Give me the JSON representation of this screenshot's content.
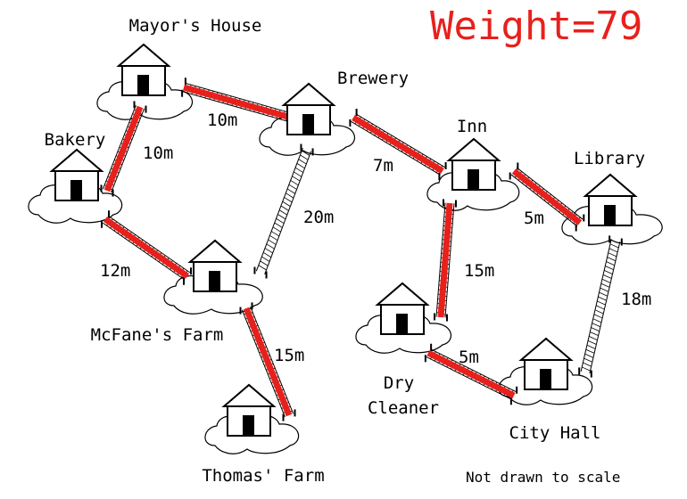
{
  "weight_label": "Weight=79",
  "note": "Not drawn to scale",
  "colors": {
    "mst_edge": "#e8201c",
    "ink": "#000000",
    "background": "#ffffff"
  },
  "towns": [
    {
      "id": "mayors-house",
      "name": "Mayor's House"
    },
    {
      "id": "brewery",
      "name": "Brewery"
    },
    {
      "id": "bakery",
      "name": "Bakery"
    },
    {
      "id": "inn",
      "name": "Inn"
    },
    {
      "id": "library",
      "name": "Library"
    },
    {
      "id": "mcfanes-farm",
      "name": "McFane's Farm"
    },
    {
      "id": "dry-cleaner",
      "name": "Dry Cleaner",
      "lines": [
        "Dry",
        "Cleaner"
      ]
    },
    {
      "id": "city-hall",
      "name": "City Hall"
    },
    {
      "id": "thomas-farm",
      "name": "Thomas' Farm"
    }
  ],
  "roads": [
    {
      "from": "mayors-house",
      "to": "brewery",
      "length": "10m",
      "selected": true
    },
    {
      "from": "mayors-house",
      "to": "bakery",
      "length": "10m",
      "selected": true
    },
    {
      "from": "brewery",
      "to": "inn",
      "length": "7m",
      "selected": true
    },
    {
      "from": "brewery",
      "to": "mcfanes-farm",
      "length": "20m",
      "selected": false
    },
    {
      "from": "bakery",
      "to": "mcfanes-farm",
      "length": "12m",
      "selected": true
    },
    {
      "from": "inn",
      "to": "library",
      "length": "5m",
      "selected": true
    },
    {
      "from": "inn",
      "to": "dry-cleaner",
      "length": "15m",
      "selected": true
    },
    {
      "from": "library",
      "to": "city-hall",
      "length": "18m",
      "selected": false
    },
    {
      "from": "mcfanes-farm",
      "to": "thomas-farm",
      "length": "15m",
      "selected": true
    },
    {
      "from": "dry-cleaner",
      "to": "city-hall",
      "length": "5m",
      "selected": true
    }
  ]
}
